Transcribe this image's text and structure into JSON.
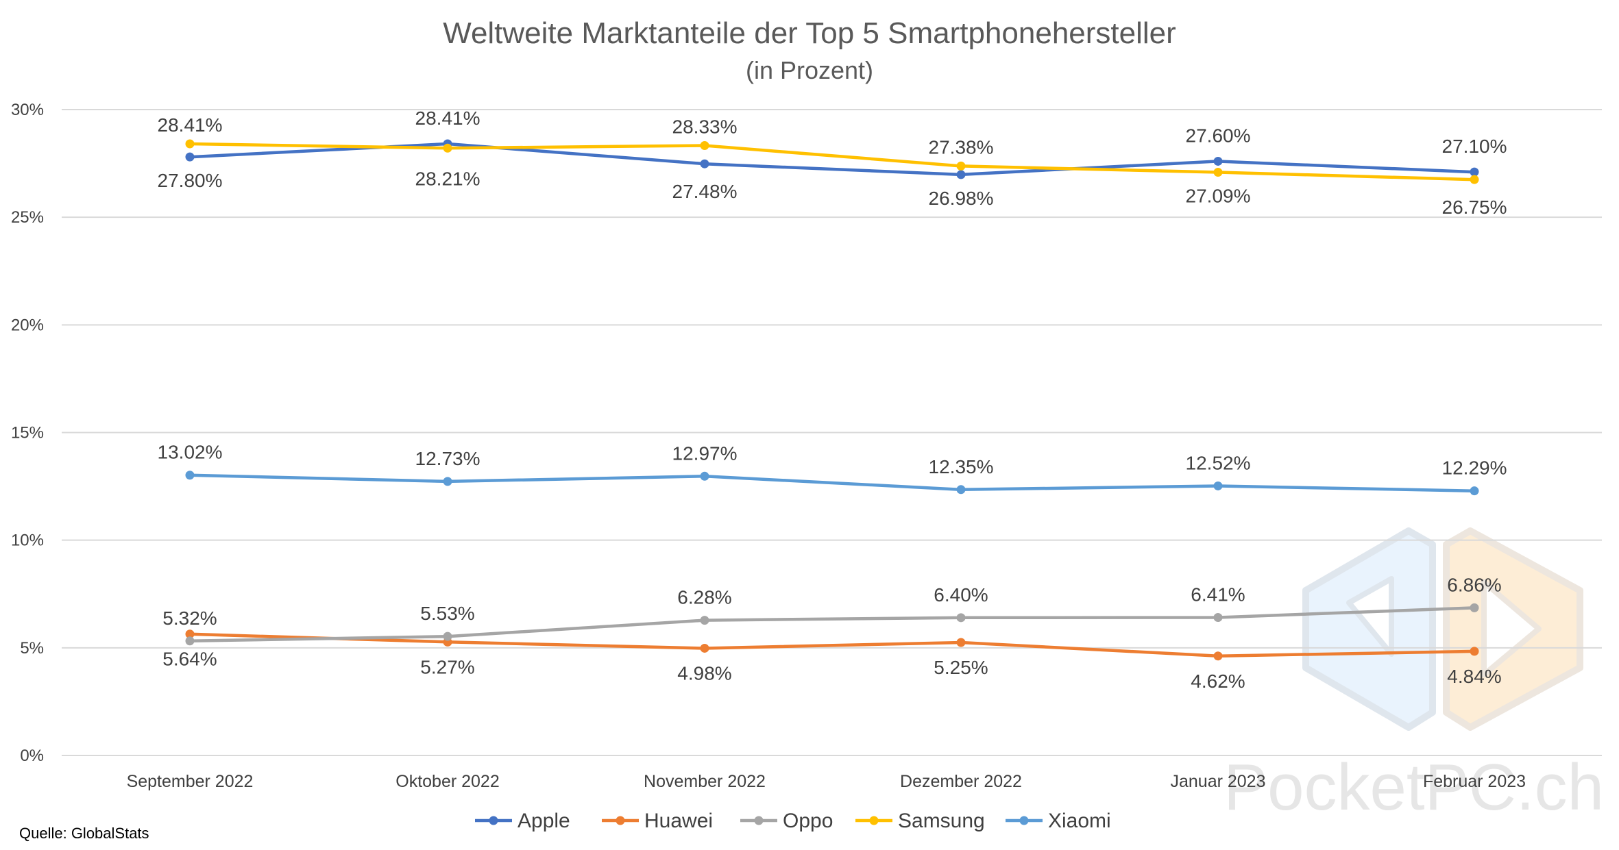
{
  "chart_data": {
    "type": "line",
    "title": "Weltweite Marktanteile der Top 5 Smartphonehersteller",
    "subtitle": "(in Prozent)",
    "categories": [
      "September 2022",
      "Oktober 2022",
      "November 2022",
      "Dezember 2022",
      "Januar 2023",
      "Februar 2023"
    ],
    "ylim": [
      0,
      30
    ],
    "yticks": [
      "0%",
      "5%",
      "10%",
      "15%",
      "20%",
      "25%",
      "30%"
    ],
    "grid": true,
    "legend_position": "bottom",
    "series": [
      {
        "name": "Apple",
        "color": "#4472C4",
        "values": [
          27.8,
          28.41,
          27.48,
          26.98,
          27.6,
          27.1
        ],
        "labels": [
          "27.80%",
          "28.41%",
          "27.48%",
          "26.98%",
          "27.60%",
          "27.10%"
        ]
      },
      {
        "name": "Huawei",
        "color": "#ED7D31",
        "values": [
          5.64,
          5.27,
          4.98,
          5.25,
          4.62,
          4.84
        ],
        "labels": [
          "5.64%",
          "5.27%",
          "4.98%",
          "5.25%",
          "4.62%",
          "4.84%"
        ]
      },
      {
        "name": "Oppo",
        "color": "#A5A5A5",
        "values": [
          5.32,
          5.53,
          6.28,
          6.4,
          6.41,
          6.86
        ],
        "labels": [
          "5.32%",
          "5.53%",
          "6.28%",
          "6.40%",
          "6.41%",
          "6.86%"
        ]
      },
      {
        "name": "Samsung",
        "color": "#FFC000",
        "values": [
          28.41,
          28.21,
          28.33,
          27.38,
          27.09,
          26.75
        ],
        "labels": [
          "28.41%",
          "28.21%",
          "28.33%",
          "27.38%",
          "27.09%",
          "26.75%"
        ]
      },
      {
        "name": "Xiaomi",
        "color": "#5B9BD5",
        "values": [
          13.02,
          12.73,
          12.97,
          12.35,
          12.52,
          12.29
        ],
        "labels": [
          "13.02%",
          "12.73%",
          "12.97%",
          "12.35%",
          "12.52%",
          "12.29%"
        ]
      }
    ],
    "source": "Quelle: GlobalStats"
  },
  "watermark": {
    "text": "PocketPC.ch",
    "logo_icon": "pocketpc-logo-icon"
  }
}
